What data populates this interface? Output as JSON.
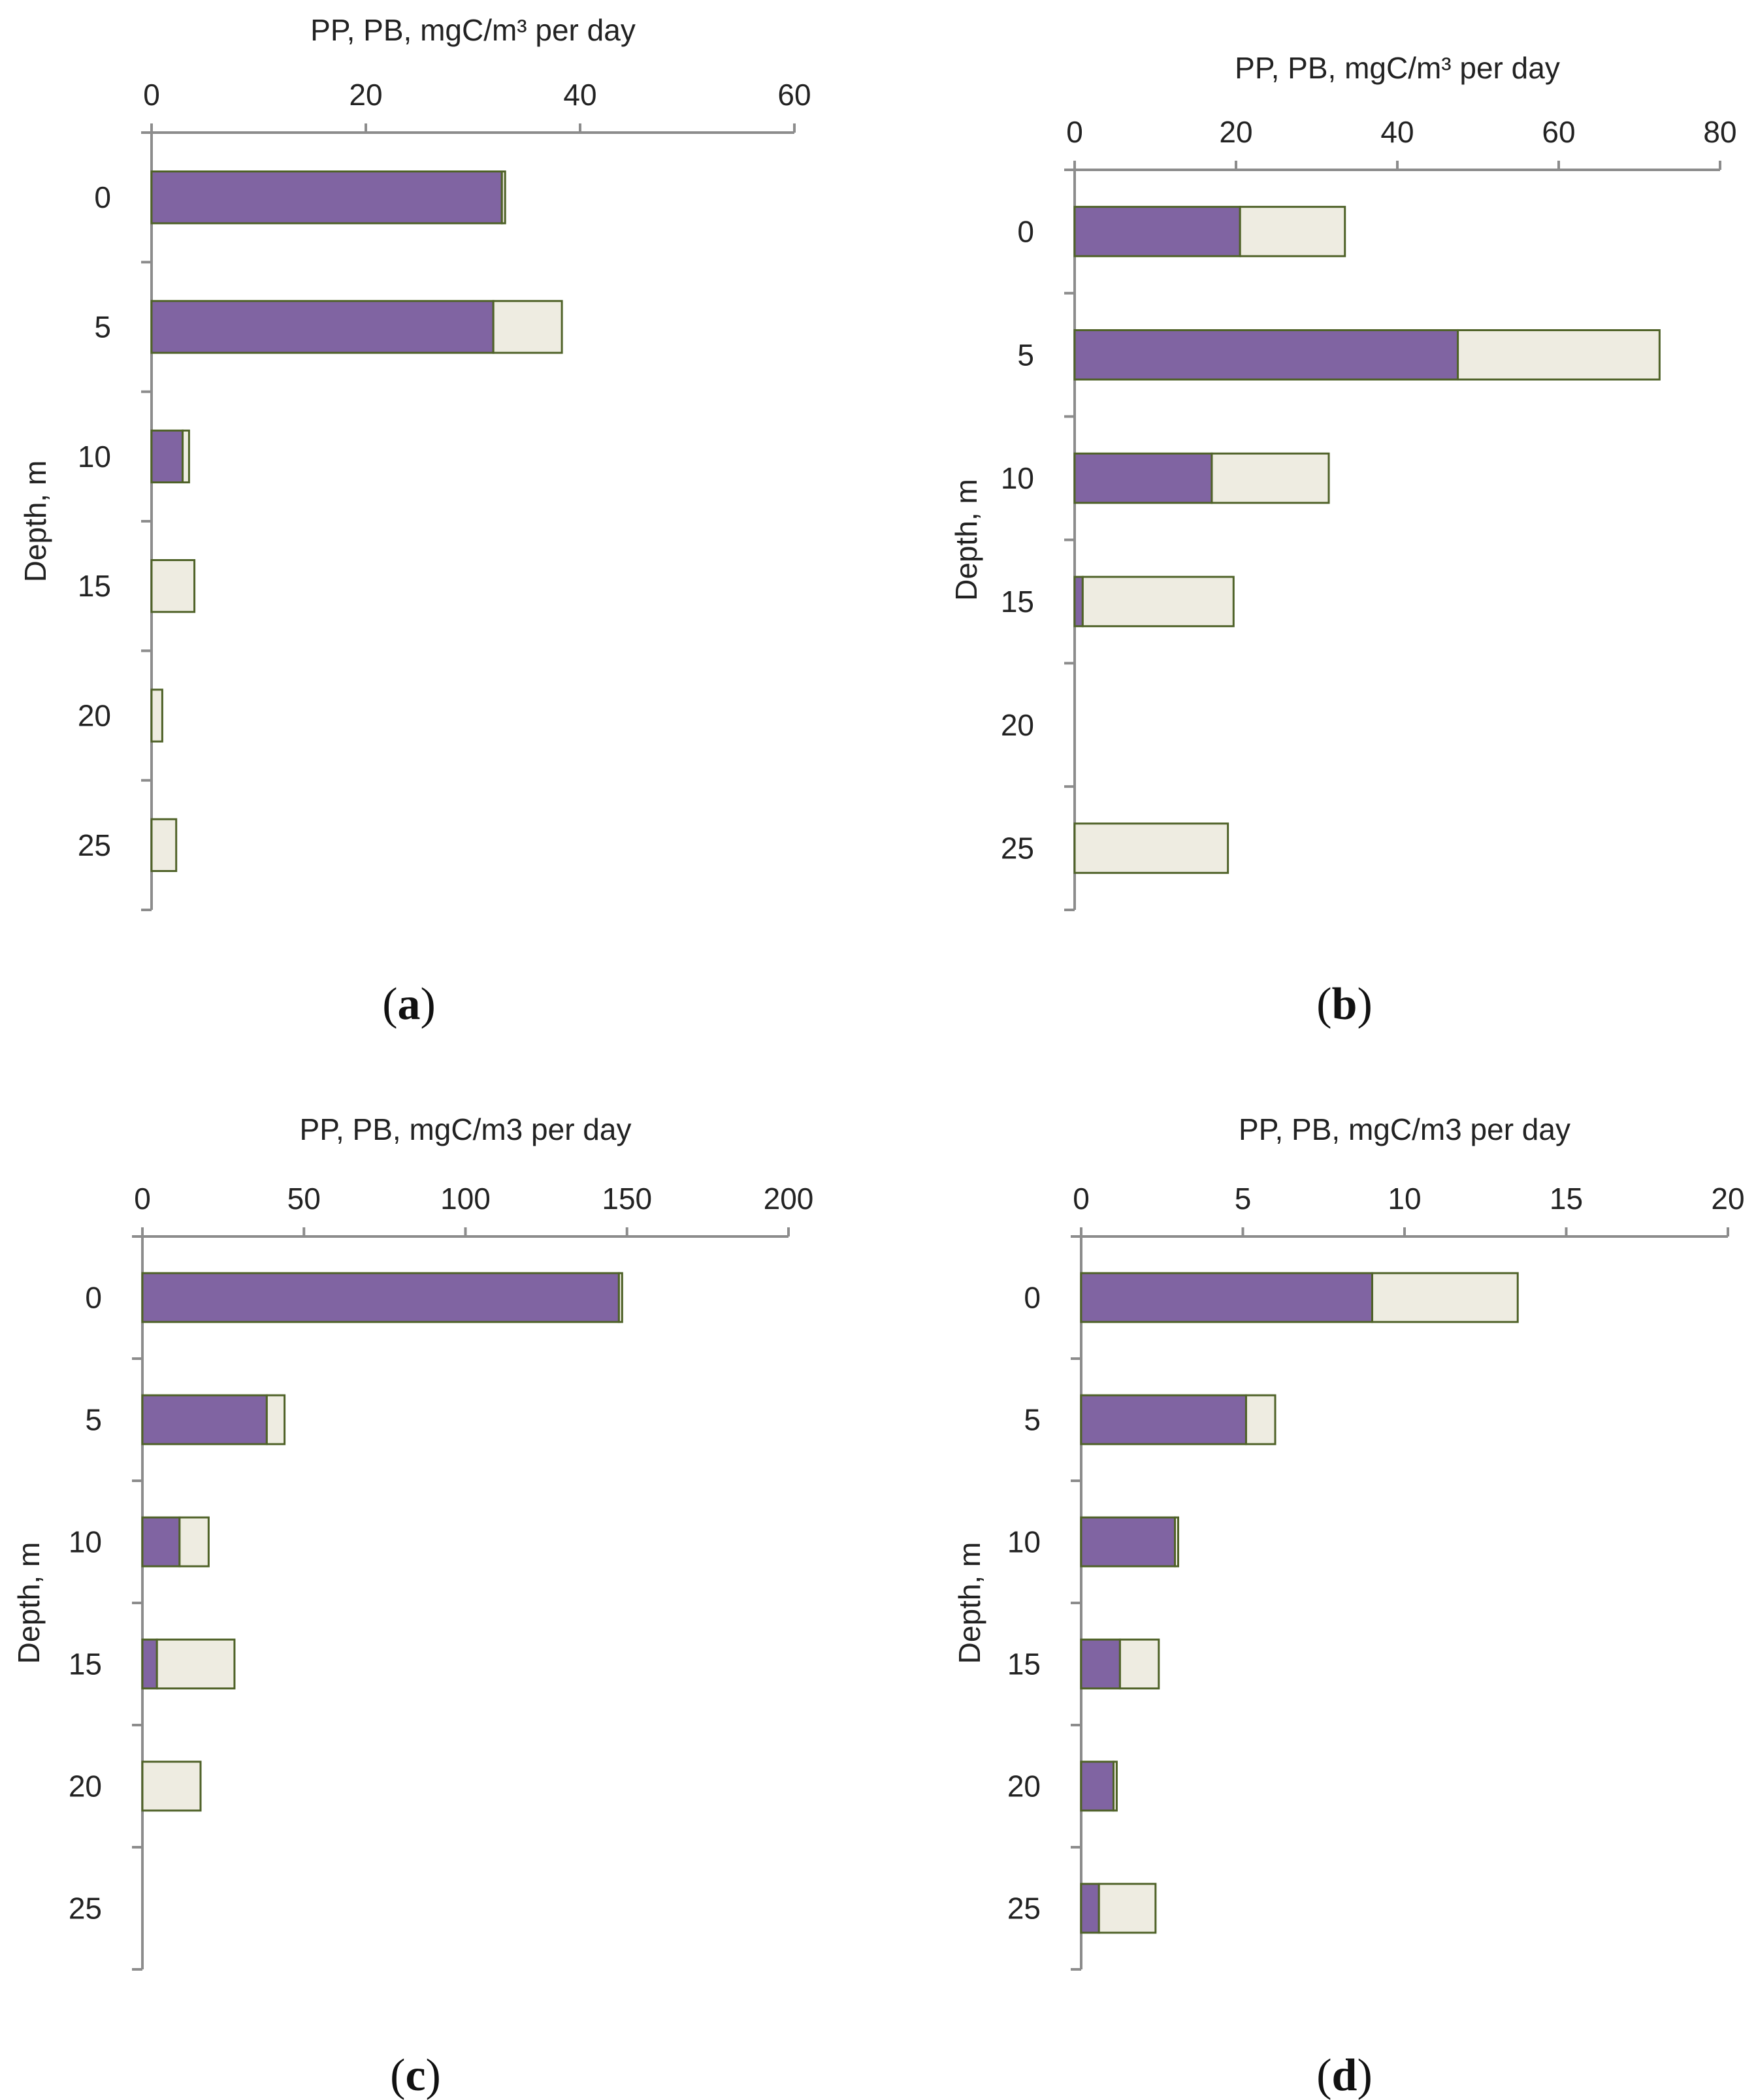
{
  "colors": {
    "pp": "#8064a2",
    "pb": "#eeece1",
    "bar_outline": "#4f6228",
    "axis": "#8c8c8c",
    "text": "#222222"
  },
  "chart_data": [
    {
      "type": "bar",
      "orientation": "horizontal",
      "stacked": true,
      "panel_label": "(a)",
      "panel_letter": "a",
      "xlabel": "PP, PB, mgC/m³ per day",
      "ylabel": "Depth, m",
      "categories": [
        "0",
        "5",
        "10",
        "15",
        "20",
        "25"
      ],
      "xlim": [
        0,
        60
      ],
      "xticks": [
        "0",
        "20",
        "40",
        "60"
      ],
      "xtick_values": [
        0,
        20,
        40,
        60
      ],
      "series": [
        {
          "values": [
            32.7,
            31.9,
            2.9,
            0,
            0,
            0
          ]
        },
        {
          "values": [
            0.3,
            6.4,
            0.6,
            4.0,
            1.0,
            2.3
          ]
        }
      ]
    },
    {
      "type": "bar",
      "orientation": "horizontal",
      "stacked": true,
      "panel_label": "(b)",
      "panel_letter": "b",
      "xlabel": "PP, PB, mgC/m³ per day",
      "ylabel": "Depth, m",
      "categories": [
        "0",
        "5",
        "10",
        "15",
        "20",
        "25"
      ],
      "xlim": [
        0,
        80
      ],
      "xticks": [
        "0",
        "20",
        "40",
        "60",
        "80"
      ],
      "xtick_values": [
        0,
        20,
        40,
        60,
        80
      ],
      "series": [
        {
          "values": [
            20.5,
            47.5,
            17.0,
            1.0,
            0,
            0
          ]
        },
        {
          "values": [
            13.0,
            25.0,
            14.5,
            18.7,
            0,
            19.0
          ]
        }
      ]
    },
    {
      "type": "bar",
      "orientation": "horizontal",
      "stacked": true,
      "panel_label": "(c)",
      "panel_letter": "c",
      "xlabel": "PP, PB, mgC/m3 per day",
      "ylabel": "Depth, m",
      "categories": [
        "0",
        "5",
        "10",
        "15",
        "20",
        "25"
      ],
      "xlim": [
        0,
        200
      ],
      "xticks": [
        "0",
        "50",
        "100",
        "150",
        "200"
      ],
      "xtick_values": [
        0,
        50,
        100,
        150,
        200
      ],
      "series": [
        {
          "values": [
            147.5,
            38.5,
            11.5,
            4.5,
            0,
            0
          ]
        },
        {
          "values": [
            1.0,
            5.5,
            9.0,
            24.0,
            18.0,
            0
          ]
        }
      ]
    },
    {
      "type": "bar",
      "orientation": "horizontal",
      "stacked": true,
      "panel_label": "(d)",
      "panel_letter": "d",
      "xlabel": "PP, PB, mgC/m3 per day",
      "ylabel": "Depth, m",
      "categories": [
        "0",
        "5",
        "10",
        "15",
        "20",
        "25"
      ],
      "xlim": [
        0,
        20
      ],
      "xticks": [
        "0",
        "5",
        "10",
        "15",
        "20"
      ],
      "xtick_values": [
        0,
        5,
        10,
        15,
        20
      ],
      "series": [
        {
          "values": [
            9.0,
            5.1,
            2.9,
            1.2,
            1.0,
            0.55
          ]
        },
        {
          "values": [
            4.5,
            0.9,
            0.1,
            1.2,
            0.1,
            1.75
          ]
        }
      ]
    }
  ]
}
